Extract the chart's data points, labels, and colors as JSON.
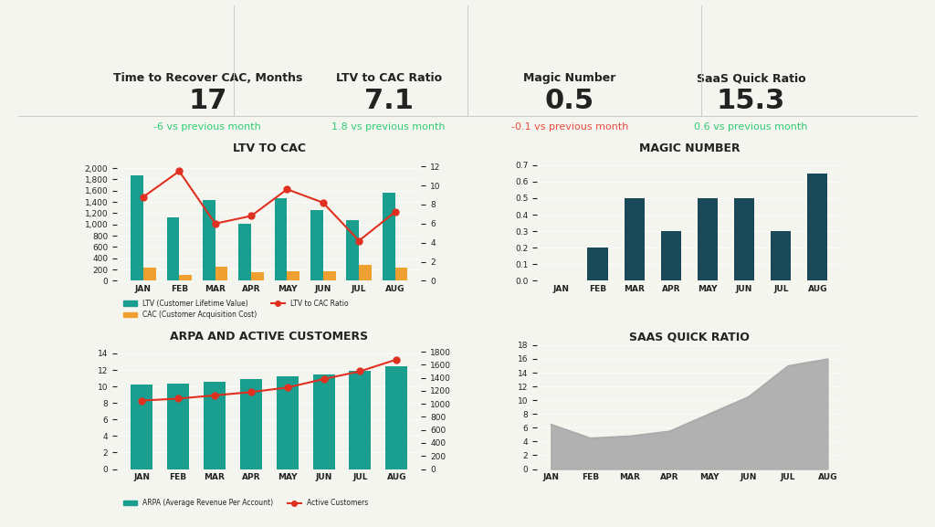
{
  "months": [
    "JAN",
    "FEB",
    "MAR",
    "APR",
    "MAY",
    "JUN",
    "JUL",
    "AUG"
  ],
  "ltv": [
    1870,
    1120,
    1430,
    1010,
    1460,
    1260,
    1080,
    1560
  ],
  "cac": [
    230,
    110,
    255,
    155,
    165,
    165,
    280,
    230
  ],
  "ltv_to_cac": [
    8.8,
    11.5,
    6.0,
    6.8,
    9.6,
    8.2,
    4.2,
    7.2
  ],
  "magic_values": [
    0.0,
    0.2,
    0.5,
    0.3,
    0.5,
    0.5,
    0.3,
    0.65
  ],
  "arpa": [
    10.2,
    10.3,
    10.6,
    10.9,
    11.2,
    11.5,
    11.9,
    12.4
  ],
  "active_customers": [
    1050,
    1080,
    1130,
    1180,
    1250,
    1380,
    1500,
    1680
  ],
  "saas_quick_ratio": [
    6.5,
    4.5,
    4.8,
    5.5,
    8.0,
    10.5,
    15.0,
    16.0
  ],
  "kpi_labels": [
    "Time to Recover CAC, Months",
    "LTV to CAC Ratio",
    "Magic Number",
    "SaaS Quick Ratio"
  ],
  "kpi_values": [
    "17",
    "7.1",
    "0.5",
    "15.3"
  ],
  "kpi_changes": [
    "-6 vs previous month",
    "1.8 vs previous month",
    "-0.1 vs previous month",
    "0.6 vs previous month"
  ],
  "kpi_change_colors": [
    "#2ecc71",
    "#2ecc71",
    "#e74c3c",
    "#2ecc71"
  ],
  "bg_color": "#f5f5f0",
  "bar_color_ltv": "#1a9e8f",
  "bar_color_cac": "#f0a030",
  "line_color_ratio": "#e03020",
  "bar_color_magic": "#1a4a5a",
  "bar_color_arpa": "#1a9e8f",
  "line_color_customers": "#e03020",
  "area_color_saas": "#aaaaaa",
  "title_color": "#222222"
}
